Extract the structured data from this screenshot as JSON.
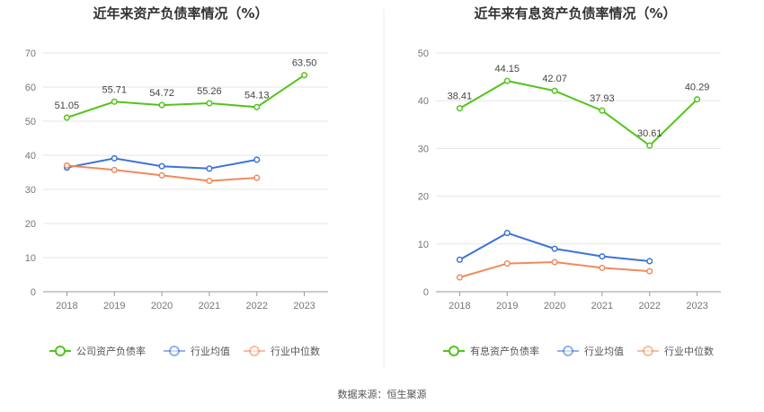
{
  "source": "数据来源：恒生聚源",
  "chart_data": [
    {
      "type": "line",
      "title": "近年来资产负债率情况（%）",
      "categories": [
        "2018",
        "2019",
        "2020",
        "2021",
        "2022",
        "2023"
      ],
      "ylim": [
        0,
        70
      ],
      "yticks": [
        "0",
        "10",
        "20",
        "30",
        "40",
        "50",
        "60",
        "70"
      ],
      "grid": true,
      "legend_position": "bottom",
      "series": [
        {
          "name": "公司资产负债率",
          "color": "#52c41a",
          "values": [
            51.05,
            55.71,
            54.72,
            55.26,
            54.13,
            63.5
          ],
          "labels": [
            "51.05",
            "55.71",
            "54.72",
            "55.26",
            "54.13",
            "63.50"
          ]
        },
        {
          "name": "行业均值",
          "color": "#3b73d9",
          "values": [
            36.4,
            39.1,
            36.8,
            36.1,
            38.7,
            null
          ]
        },
        {
          "name": "行业中位数",
          "color": "#f08a5d",
          "values": [
            37.0,
            35.7,
            34.1,
            32.5,
            33.4,
            null
          ]
        }
      ]
    },
    {
      "type": "line",
      "title": "近年来有息资产负债率情况（%）",
      "categories": [
        "2018",
        "2019",
        "2020",
        "2021",
        "2022",
        "2023"
      ],
      "ylim": [
        0,
        50
      ],
      "yticks": [
        "0",
        "10",
        "20",
        "30",
        "40",
        "50"
      ],
      "grid": true,
      "legend_position": "bottom",
      "series": [
        {
          "name": "有息资产负债率",
          "color": "#52c41a",
          "values": [
            38.41,
            44.15,
            42.07,
            37.93,
            30.61,
            40.29
          ],
          "labels": [
            "38.41",
            "44.15",
            "42.07",
            "37.93",
            "30.61",
            "40.29"
          ]
        },
        {
          "name": "行业均值",
          "color": "#3b73d9",
          "values": [
            6.7,
            12.3,
            9.0,
            7.4,
            6.4,
            null
          ]
        },
        {
          "name": "行业中位数",
          "color": "#f08a5d",
          "values": [
            3.0,
            5.9,
            6.2,
            5.0,
            4.3,
            null
          ]
        }
      ]
    }
  ]
}
